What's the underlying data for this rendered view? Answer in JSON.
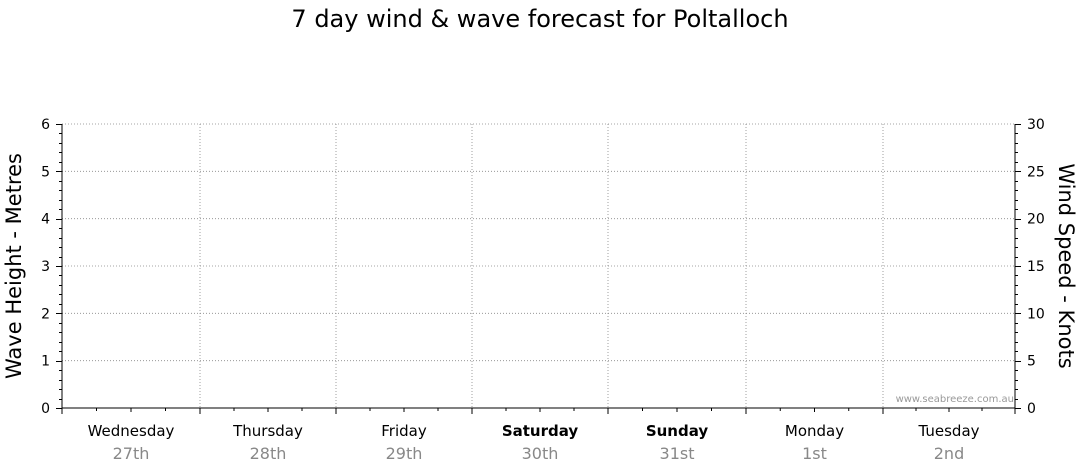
{
  "chart_data": {
    "type": "line",
    "title": "7 day wind & wave forecast for Poltalloch",
    "ylabel_left": "Wave Height - Metres",
    "ylabel_right": "Wind Speed - Knots",
    "ylim_left": [
      0,
      6
    ],
    "ylim_right": [
      0,
      30
    ],
    "yticks_left": [
      "0",
      "1",
      "2",
      "3",
      "4",
      "5",
      "6"
    ],
    "yticks_right": [
      "0",
      "5",
      "10",
      "15",
      "20",
      "25",
      "30"
    ],
    "grid": true,
    "days": [
      {
        "name": "Wednesday",
        "date": "27th",
        "bold": false
      },
      {
        "name": "Thursday",
        "date": "28th",
        "bold": false
      },
      {
        "name": "Friday",
        "date": "29th",
        "bold": false
      },
      {
        "name": "Saturday",
        "date": "30th",
        "bold": true
      },
      {
        "name": "Sunday",
        "date": "31st",
        "bold": true
      },
      {
        "name": "Monday",
        "date": "1st",
        "bold": false
      },
      {
        "name": "Tuesday",
        "date": "2nd",
        "bold": false
      }
    ],
    "series": [],
    "watermark": "www.seabreeze.com.au"
  },
  "colors": {
    "grid": "#888888",
    "axis": "#000000",
    "date_text": "#888888",
    "watermark": "#999999"
  }
}
